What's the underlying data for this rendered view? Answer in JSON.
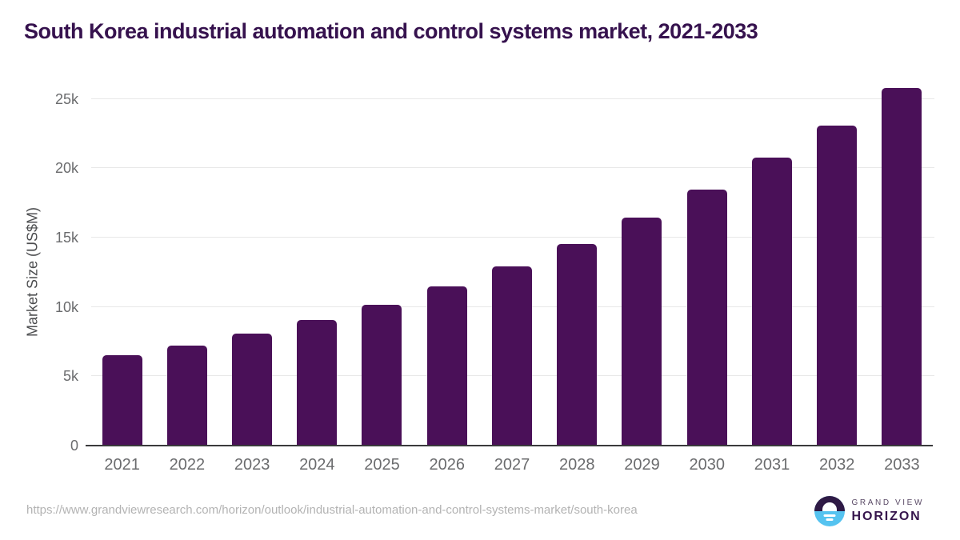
{
  "title": "South Korea industrial automation and control systems market, 2021-2033",
  "colors": {
    "title": "#36124e",
    "bar": "#4a1058",
    "axis_label": "#6b6c6e",
    "axis_title": "#4d4e50",
    "gridline": "#e8e8e8",
    "baseline": "#3a3a3c",
    "source": "#b3b3b3",
    "logo_purple": "#2f1a45",
    "logo_blue": "#55c3f0",
    "logo_line1": "#5a4a66",
    "logo_line2": "#36154d"
  },
  "chart_data": {
    "type": "bar",
    "title": "South Korea industrial automation and control systems market, 2021-2033",
    "categories": [
      "2021",
      "2022",
      "2023",
      "2024",
      "2025",
      "2026",
      "2027",
      "2028",
      "2029",
      "2030",
      "2031",
      "2032",
      "2033"
    ],
    "values": [
      6500,
      7200,
      8100,
      9050,
      10150,
      11500,
      12900,
      14550,
      16450,
      18450,
      20750,
      23100,
      25800
    ],
    "xlabel": "",
    "ylabel": "Market Size (US$M)",
    "ylim": [
      0,
      27000
    ],
    "y_ticks": [
      {
        "value": 0,
        "label": "0"
      },
      {
        "value": 5000,
        "label": "5k"
      },
      {
        "value": 10000,
        "label": "10k"
      },
      {
        "value": 15000,
        "label": "15k"
      },
      {
        "value": 20000,
        "label": "20k"
      },
      {
        "value": 25000,
        "label": "25k"
      }
    ],
    "grid": true,
    "legend": false,
    "bar_color": "#4a1058"
  },
  "footer": {
    "source_url": "https://www.grandviewresearch.com/horizon/outlook/industrial-automation-and-control-systems-market/south-korea",
    "logo": {
      "line1": "GRAND VIEW",
      "line2": "HORIZON"
    }
  }
}
